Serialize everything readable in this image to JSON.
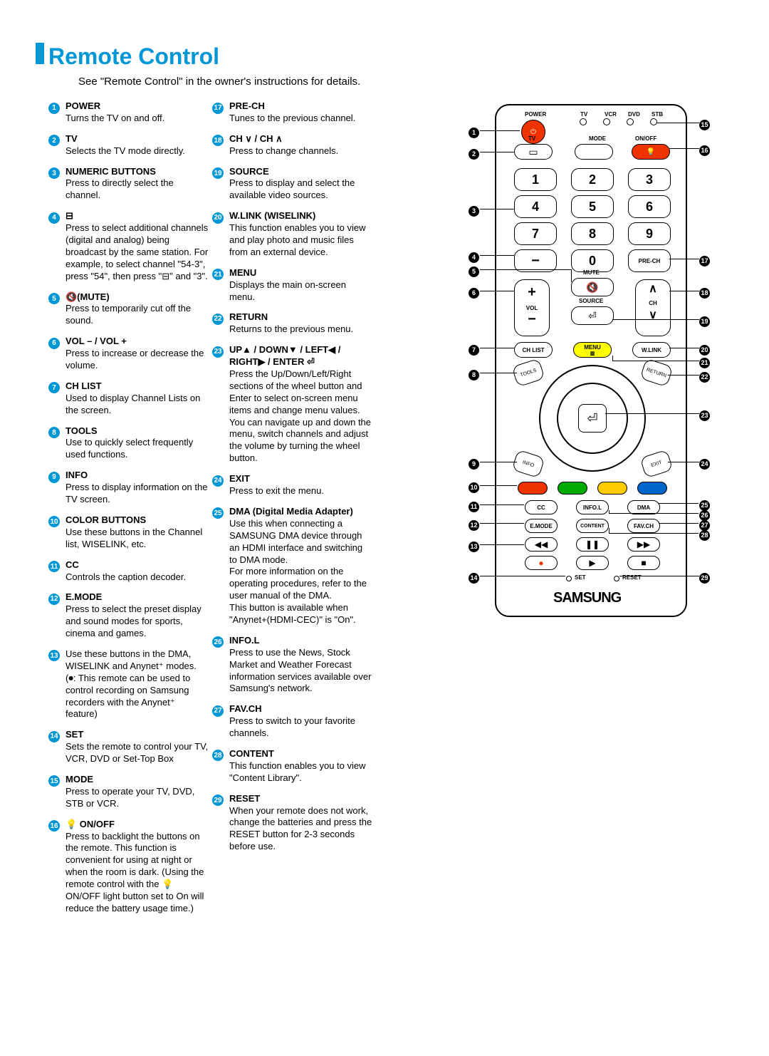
{
  "title": "Remote Control",
  "subtitle": "See \"Remote Control\" in the owner's instructions for details.",
  "col1": [
    {
      "n": "1",
      "label": "POWER",
      "desc": "Turns the TV on and off."
    },
    {
      "n": "2",
      "label": "TV",
      "desc": "Selects the TV mode directly."
    },
    {
      "n": "3",
      "label": "NUMERIC BUTTONS",
      "desc": "Press to directly select the channel."
    },
    {
      "n": "4",
      "label": "⊟",
      "desc": "Press to select additional channels (digital and analog) being broadcast by the same station. For example, to select channel \"54-3\", press \"54\", then press \"⊟\" and \"3\"."
    },
    {
      "n": "5",
      "label": "🔇(MUTE)",
      "desc": "Press to temporarily cut off the sound."
    },
    {
      "n": "6",
      "label": "VOL – / VOL +",
      "desc": "Press to increase or decrease the volume."
    },
    {
      "n": "7",
      "label": "CH LIST",
      "desc": "Used to display Channel Lists on the screen."
    },
    {
      "n": "8",
      "label": "TOOLS",
      "desc": "Use to quickly select frequently used functions."
    },
    {
      "n": "9",
      "label": "INFO",
      "desc": "Press to display information on the TV screen."
    },
    {
      "n": "10",
      "label": "COLOR BUTTONS",
      "desc": "Use these buttons in the Channel list, WISELINK, etc."
    },
    {
      "n": "11",
      "label": "CC",
      "desc": "Controls the caption decoder."
    },
    {
      "n": "12",
      "label": "E.MODE",
      "desc": "Press to select the preset display and sound modes for sports, cinema and games."
    },
    {
      "n": "13",
      "label": "",
      "desc": "Use these buttons in the DMA, WISELINK and Anynet⁺ modes. (⏺: This remote can be used to control recording on Samsung recorders with the Anynet⁺ feature)"
    },
    {
      "n": "14",
      "label": "SET",
      "desc": "Sets the remote to control your TV, VCR, DVD or Set-Top Box"
    },
    {
      "n": "15",
      "label": "MODE",
      "desc": "Press to operate your TV, DVD, STB or VCR."
    },
    {
      "n": "16",
      "label": "💡 ON/OFF",
      "desc": "Press to backlight the buttons on the remote. This function is convenient for using at night or when the room is dark. (Using the remote control with the 💡 ON/OFF light button set to On will reduce the battery usage time.)"
    }
  ],
  "col2": [
    {
      "n": "17",
      "label": "PRE-CH",
      "desc": "Tunes to the previous channel."
    },
    {
      "n": "18",
      "label": "CH ∨ / CH ∧",
      "desc": "Press to change channels."
    },
    {
      "n": "19",
      "label": "SOURCE",
      "desc": "Press to display and select the available video sources."
    },
    {
      "n": "20",
      "label": "W.LINK (WISELINK)",
      "desc": "This function enables you to view and play photo and music files from an external device."
    },
    {
      "n": "21",
      "label": "MENU",
      "desc": "Displays the main on-screen menu."
    },
    {
      "n": "22",
      "label": "RETURN",
      "desc": "Returns to the previous menu."
    },
    {
      "n": "23",
      "label": "UP▲ / DOWN▼ / LEFT◀ / RIGHT▶ / ENTER ⏎",
      "desc": "Press the Up/Down/Left/Right sections of the wheel button and Enter to select on-screen menu items and change menu values.",
      "desc2": "You can navigate up and down the menu, switch channels and adjust the volume by turning the wheel button."
    },
    {
      "n": "24",
      "label": "EXIT",
      "desc": "Press to exit the menu."
    },
    {
      "n": "25",
      "label": "DMA (Digital Media Adapter)",
      "desc": "Use this when connecting a SAMSUNG DMA device through an HDMI interface and switching to DMA mode.",
      "desc2": "For more information on the operating procedures, refer to the user manual of the DMA.",
      "desc3": "This button is available when \"Anynet+(HDMI-CEC)\" is \"On\"."
    },
    {
      "n": "26",
      "label": "INFO.L",
      "desc": "Press to use the News, Stock Market and Weather Forecast information services available over Samsung's network."
    },
    {
      "n": "27",
      "label": "FAV.CH",
      "desc": "Press to switch to your favorite channels."
    },
    {
      "n": "28",
      "label": "CONTENT",
      "desc": "This function enables you to view \"Content Library\"."
    },
    {
      "n": "29",
      "label": "RESET",
      "desc": "When your remote does not work, change the batteries and press the RESET button for 2-3 seconds before use."
    }
  ],
  "remote": {
    "power": "POWER",
    "tv": "TV",
    "vcr": "VCR",
    "dvd": "DVD",
    "stb": "STB",
    "mode": "MODE",
    "onoff": "ON/OFF",
    "prech": "PRE-CH",
    "mute": "MUTE",
    "vol": "VOL",
    "source": "SOURCE",
    "ch": "CH",
    "chlist": "CH LIST",
    "menu": "MENU",
    "wlink": "W.LINK",
    "tools": "TOOLS",
    "return": "RETURN",
    "info": "INFO",
    "exit": "EXIT",
    "cc": "CC",
    "infol": "INFO.L",
    "dma": "DMA",
    "emode": "E.MODE",
    "content": "CONTENT",
    "favch": "FAV.CH",
    "set": "SET",
    "reset": "RESET",
    "brand": "SAMSUNG"
  }
}
